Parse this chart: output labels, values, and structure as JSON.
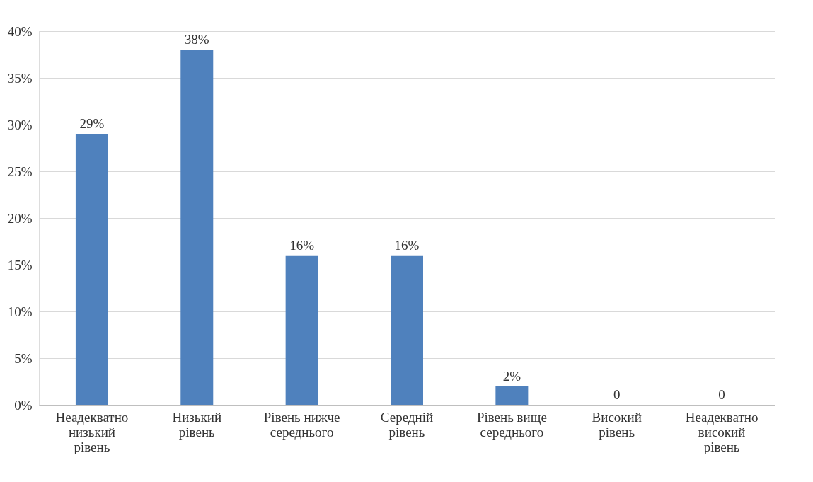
{
  "chart_data": {
    "type": "bar",
    "categories": [
      "Неадекватно низький рівень",
      "Низький рівень",
      "Рівень нижче середнього",
      "Середній рівень",
      "Рівень вище середнього",
      "Високий рівень",
      "Неадекватно високий рівень"
    ],
    "values": [
      29,
      38,
      16,
      16,
      2,
      0,
      0
    ],
    "value_labels": [
      "29%",
      "38%",
      "16%",
      "16%",
      "2%",
      "0",
      "0"
    ],
    "color": "#4f81bd",
    "ylim": [
      0,
      40
    ],
    "yticks": [
      {
        "value": 0,
        "label": "0%"
      },
      {
        "value": 5,
        "label": "5%"
      },
      {
        "value": 10,
        "label": "10%"
      },
      {
        "value": 15,
        "label": "15%"
      },
      {
        "value": 20,
        "label": "20%"
      },
      {
        "value": 25,
        "label": "25%"
      },
      {
        "value": 30,
        "label": "30%"
      },
      {
        "value": 35,
        "label": "35%"
      },
      {
        "value": 40,
        "label": "40%"
      }
    ],
    "grid": "y"
  }
}
